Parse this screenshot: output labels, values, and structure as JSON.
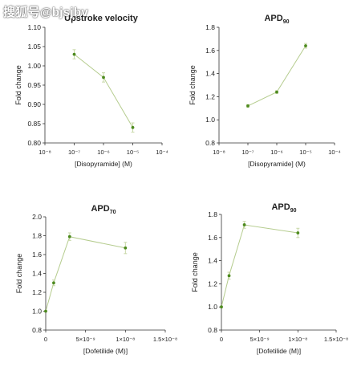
{
  "watermark": "搜狐号@bjsjbv",
  "colors": {
    "line": "#b5cc8e",
    "point": "#4d8a1e",
    "error": "#c8d8a8",
    "axis": "#333333",
    "text": "#222222"
  },
  "chart_data": [
    {
      "type": "line",
      "title": "Upstroke velocity",
      "title_sub": "",
      "xlabel": "[Disopyramide] (M)",
      "ylabel": "Fold change",
      "xscale": "log",
      "xlim_exp": [
        -8,
        -4
      ],
      "xtick_exps": [
        -8,
        -7,
        -6,
        -5,
        -4
      ],
      "xtick_labels": [
        "10⁻⁸",
        "10⁻⁷",
        "10⁻⁶",
        "10⁻⁵",
        "10⁻⁴"
      ],
      "ylim": [
        0.8,
        1.1
      ],
      "yticks": [
        0.8,
        0.85,
        0.9,
        0.95,
        1.0,
        1.05,
        1.1
      ],
      "ytick_labels": [
        "0.80",
        "0.85",
        "0.90",
        "0.95",
        "1.00",
        "1.05",
        "1.10"
      ],
      "x": [
        1e-07,
        1e-06,
        1e-05
      ],
      "y": [
        1.03,
        0.97,
        0.84
      ],
      "err": [
        0.012,
        0.012,
        0.012
      ]
    },
    {
      "type": "line",
      "title": "APD",
      "title_sub": "90",
      "xlabel": "[Disopyramide] (M)",
      "ylabel": "Fold change",
      "xscale": "log",
      "xlim_exp": [
        -8,
        -4
      ],
      "xtick_exps": [
        -8,
        -7,
        -6,
        -5,
        -4
      ],
      "xtick_labels": [
        "10⁻⁸",
        "10⁻⁷",
        "10⁻⁶",
        "10⁻⁵",
        "10⁻⁴"
      ],
      "ylim": [
        0.8,
        1.8
      ],
      "yticks": [
        0.8,
        1.0,
        1.2,
        1.4,
        1.6,
        1.8
      ],
      "ytick_labels": [
        "0.8",
        "1.0",
        "1.2",
        "1.4",
        "1.6",
        "1.8"
      ],
      "x": [
        1e-07,
        1e-06,
        1e-05
      ],
      "y": [
        1.12,
        1.24,
        1.64
      ],
      "err": [
        0.012,
        0.012,
        0.02
      ]
    },
    {
      "type": "line",
      "title": "APD",
      "title_sub": "70",
      "xlabel": "[Dofetilide (M)]",
      "ylabel": "Fold change",
      "xscale": "linear",
      "xlim": [
        0,
        1.5e-08
      ],
      "xticks": [
        0,
        5e-09,
        1e-08,
        1.5e-08
      ],
      "xtick_labels": [
        "0",
        "5×10⁻⁹",
        "1×10⁻⁸",
        "1.5×10⁻⁸"
      ],
      "ylim": [
        0.8,
        2.0
      ],
      "yticks": [
        0.8,
        1.0,
        1.2,
        1.4,
        1.6,
        1.8,
        2.0
      ],
      "ytick_labels": [
        "0.8",
        "1.0",
        "1.2",
        "1.4",
        "1.6",
        "1.8",
        "2.0"
      ],
      "x": [
        0,
        1e-09,
        3e-09,
        1e-08
      ],
      "y": [
        1.0,
        1.3,
        1.79,
        1.67
      ],
      "err": [
        0,
        0.03,
        0.04,
        0.06
      ]
    },
    {
      "type": "line",
      "title": "APD",
      "title_sub": "90",
      "xlabel": "[Dofetilide (M)]",
      "ylabel": "Fold change",
      "xscale": "linear",
      "xlim": [
        0,
        1.5e-08
      ],
      "xticks": [
        0,
        5e-09,
        1e-08,
        1.5e-08
      ],
      "xtick_labels": [
        "0",
        "5×10⁻⁹",
        "1×10⁻⁸",
        "1.5×10⁻⁸"
      ],
      "ylim": [
        0.8,
        1.8
      ],
      "yticks": [
        0.8,
        1.0,
        1.2,
        1.4,
        1.6,
        1.8
      ],
      "ytick_labels": [
        "0.8",
        "1.0",
        "1.2",
        "1.4",
        "1.6",
        "1.8"
      ],
      "x": [
        0,
        1e-09,
        3e-09,
        1e-08
      ],
      "y": [
        1.0,
        1.27,
        1.71,
        1.64
      ],
      "err": [
        0,
        0.03,
        0.03,
        0.04
      ]
    }
  ]
}
